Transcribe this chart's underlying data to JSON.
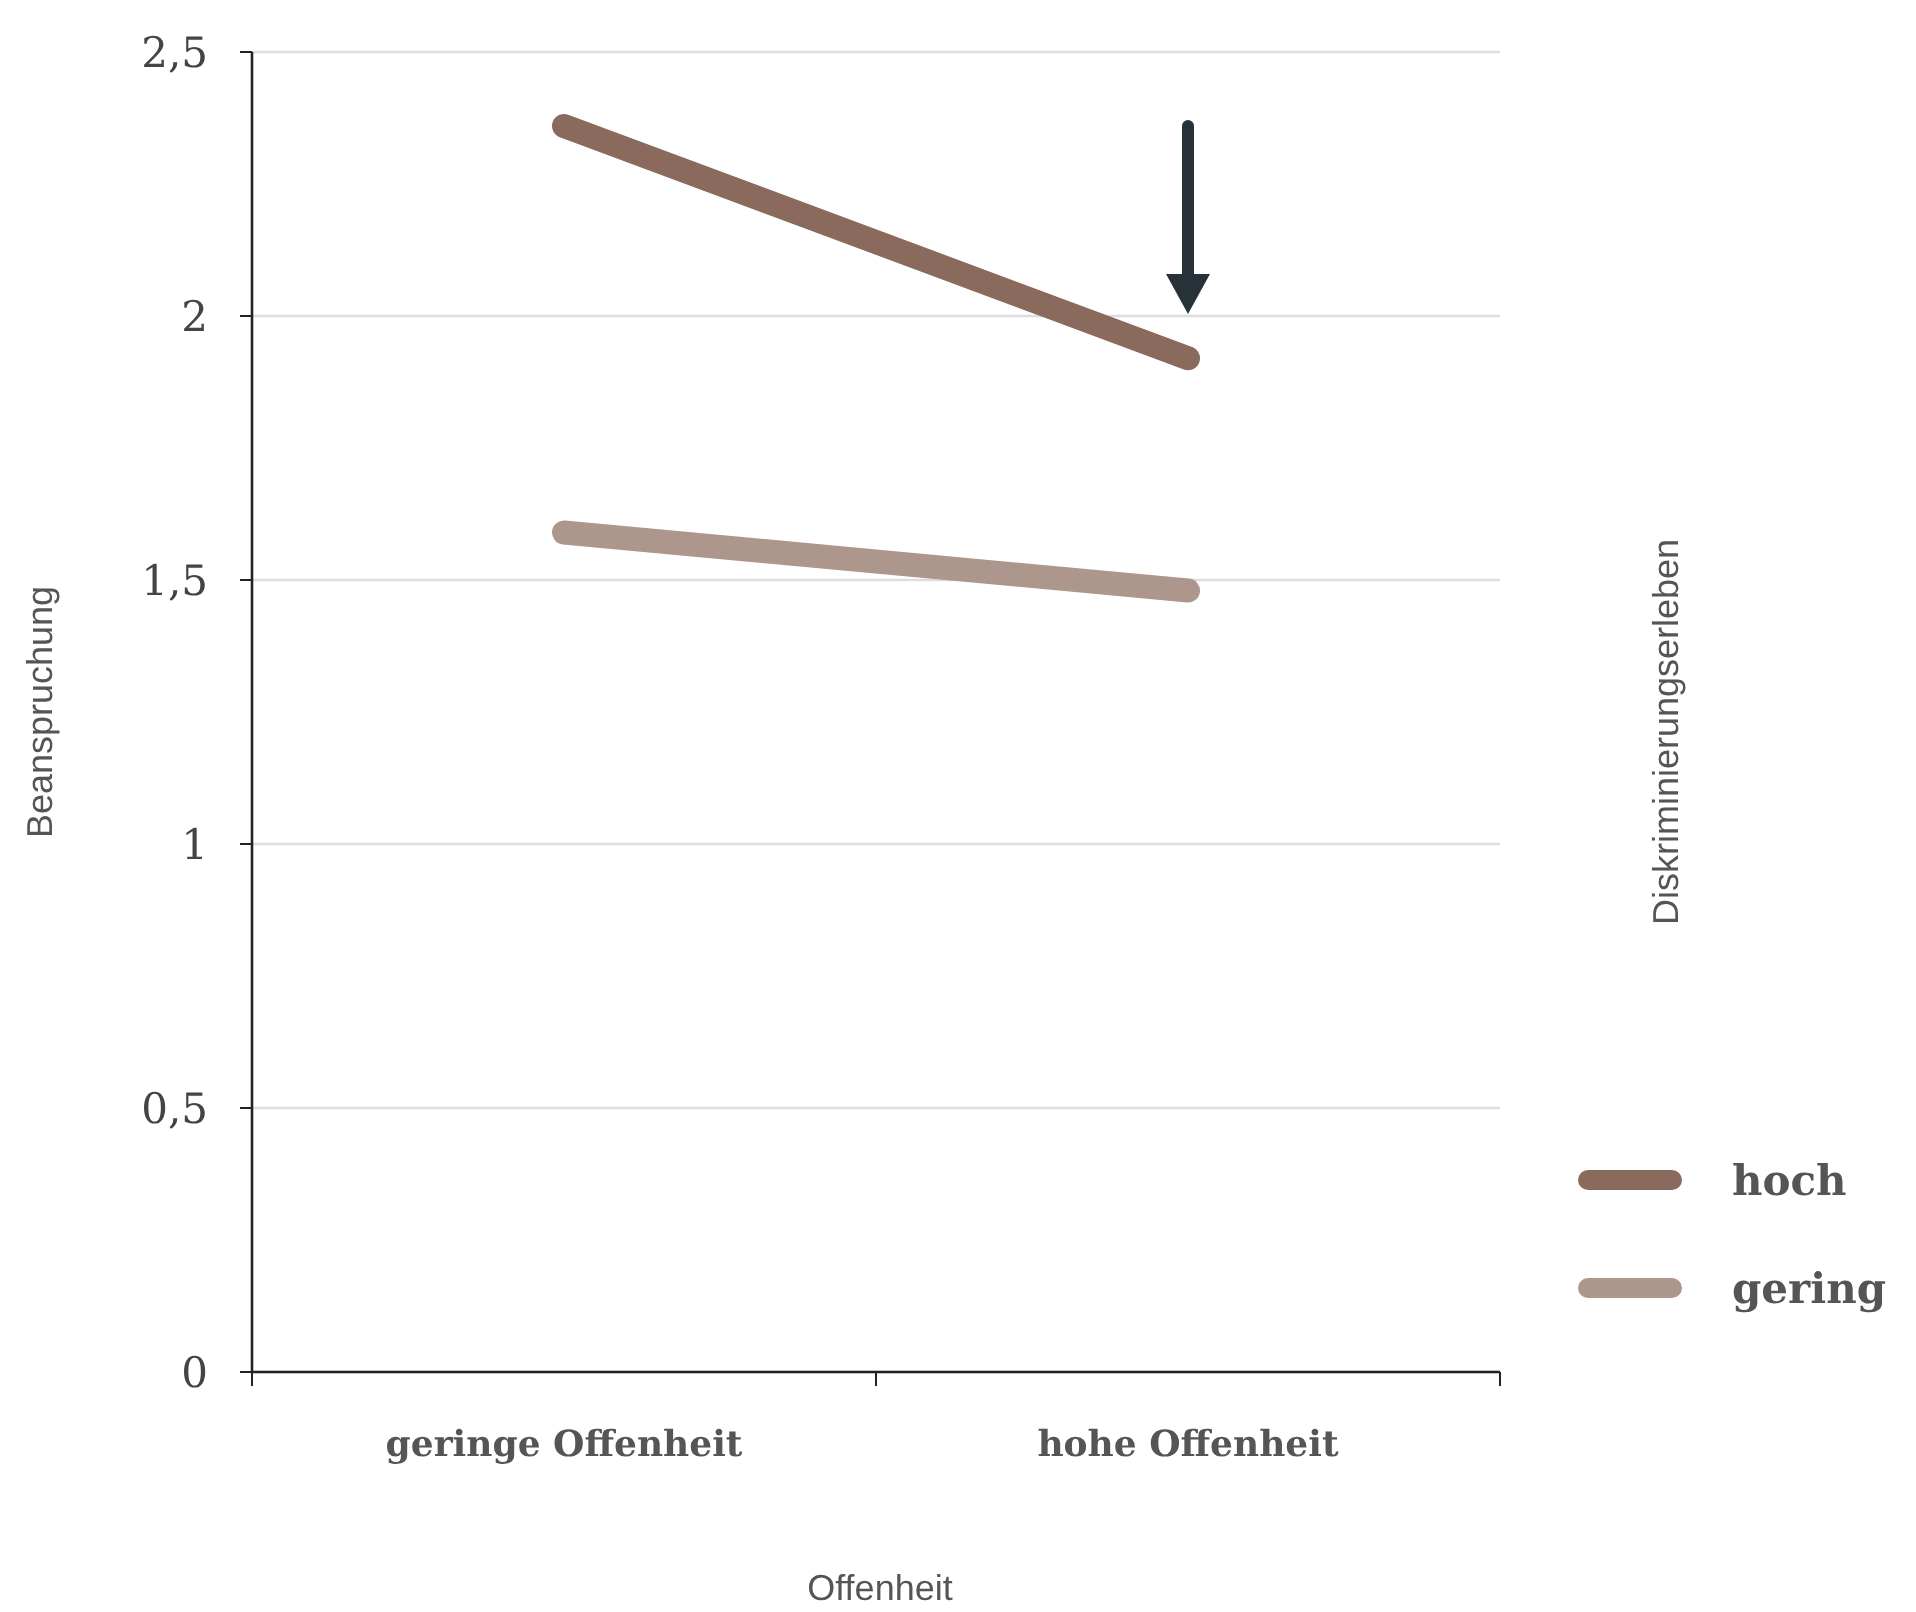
{
  "chart_data": {
    "type": "line",
    "xlabel": "Offenheit",
    "ylabel": "Beanspruchung",
    "legend_title": "Diskriminierungserleben",
    "categories": [
      "geringe Offenheit",
      "hohe Offenheit"
    ],
    "series": [
      {
        "name": "hoch",
        "color": "#8a6a5c",
        "values": [
          2.36,
          1.92
        ]
      },
      {
        "name": "gering",
        "color": "#ad968c",
        "values": [
          1.59,
          1.48
        ]
      }
    ],
    "ylim": [
      0,
      2.5
    ],
    "yticks": [
      {
        "value": 0,
        "label": "0"
      },
      {
        "value": 0.5,
        "label": "0,5"
      },
      {
        "value": 1,
        "label": "1"
      },
      {
        "value": 1.5,
        "label": "1,5"
      },
      {
        "value": 2,
        "label": "2"
      },
      {
        "value": 2.5,
        "label": "2,5"
      }
    ],
    "grid": "y",
    "legend": "right",
    "line_style": "solid"
  }
}
